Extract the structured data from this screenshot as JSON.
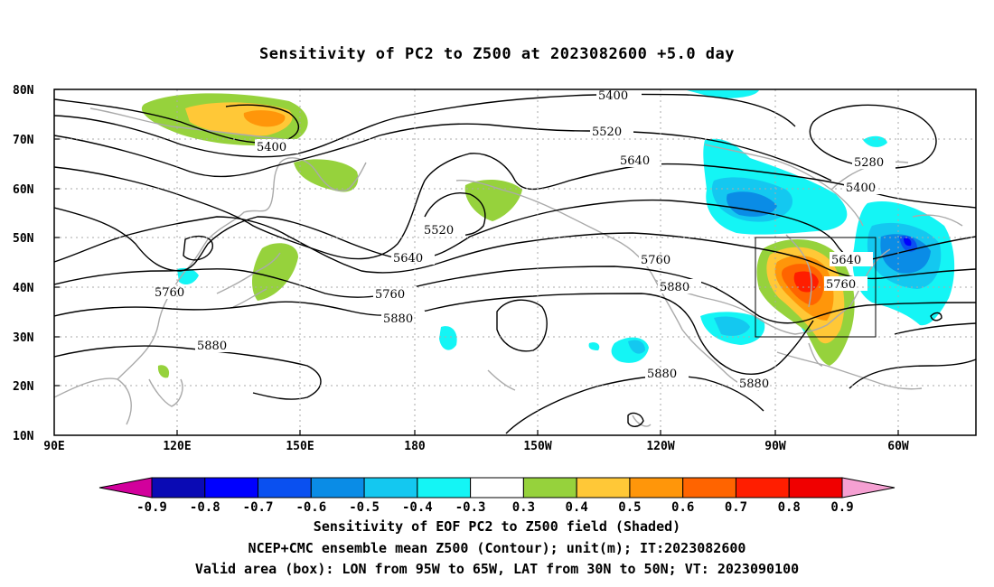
{
  "title": "Sensitivity of PC2 to Z500 at 2023082600 +5.0 day",
  "lat_labels": [
    "80N",
    "70N",
    "60N",
    "50N",
    "40N",
    "30N",
    "20N",
    "10N"
  ],
  "lon_labels": [
    "90E",
    "120E",
    "150E",
    "180",
    "150W",
    "120W",
    "90W",
    "60W"
  ],
  "contour_labels": [
    "5400",
    "5520",
    "5640",
    "5280",
    "5400",
    "5400",
    "5520",
    "5640",
    "5760",
    "5880",
    "5760",
    "5880",
    "5760",
    "5880",
    "5880",
    "5880",
    "5640",
    "5760"
  ],
  "colorbar": {
    "labels": [
      "-0.9",
      "-0.8",
      "-0.7",
      "-0.6",
      "-0.5",
      "-0.4",
      "-0.3",
      "0.3",
      "0.4",
      "0.5",
      "0.6",
      "0.7",
      "0.8",
      "0.9"
    ],
    "colors": [
      "#0a0ab4",
      "#0000ff",
      "#0a50f0",
      "#0a8ce6",
      "#14c8f0",
      "#14f5f5",
      "#ffffff",
      "#96d23c",
      "#ffc837",
      "#ff960a",
      "#ff6400",
      "#ff1e00",
      "#f00000"
    ],
    "low_color": "#d2009c",
    "high_color": "#f5a0d2"
  },
  "valid_box": {
    "lon_from": "95W",
    "lon_to": "65W",
    "lat_from": "30N",
    "lat_to": "50N"
  },
  "captions": [
    "Sensitivity of EOF PC2 to Z500 field (Shaded)",
    "NCEP+CMC ensemble mean Z500 (Contour); unit(m); IT:2023082600",
    "Valid area (box): LON from 95W to 65W, LAT from 30N to 50N; VT: 2023090100"
  ]
}
